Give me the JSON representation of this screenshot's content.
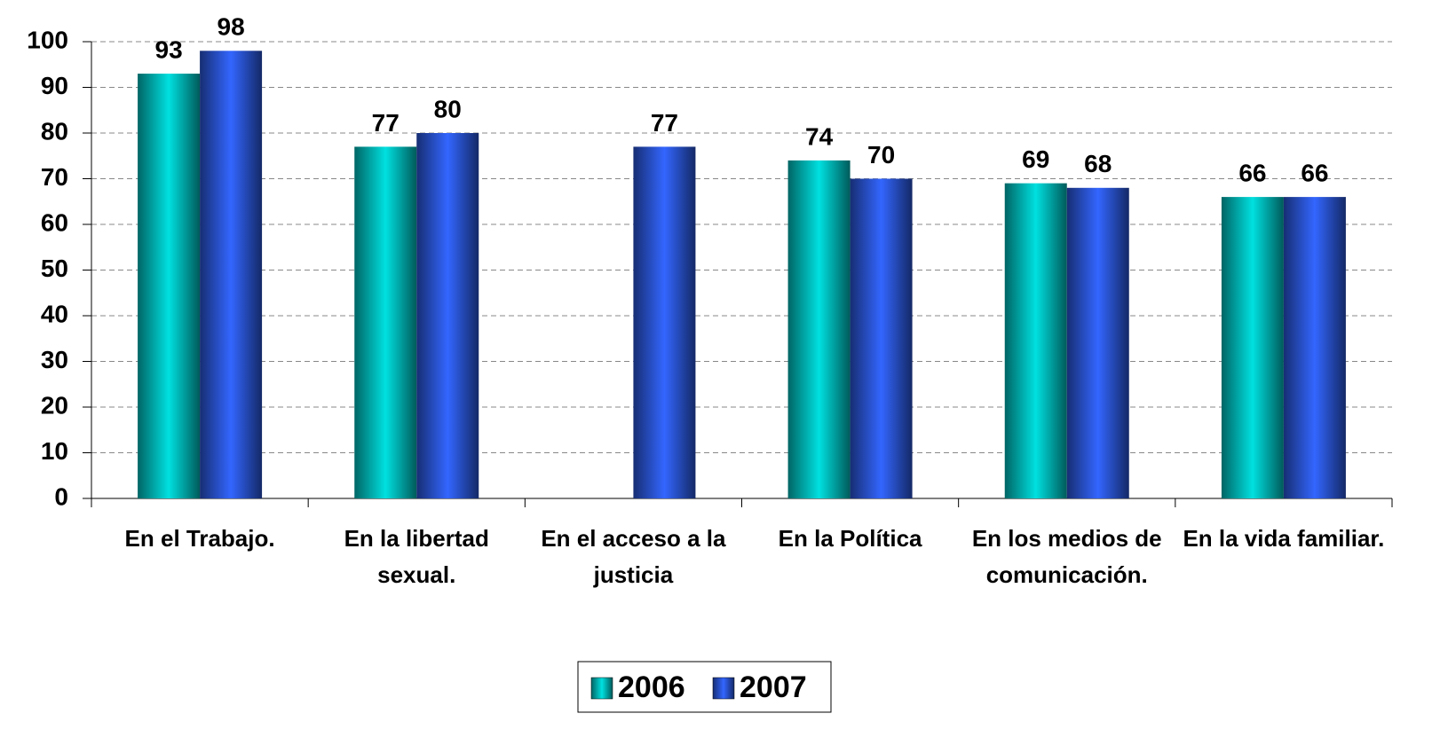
{
  "chart_data": {
    "type": "bar",
    "categories": [
      "En el Trabajo.",
      "En la libertad sexual.",
      "En el acceso a la justicia",
      "En la Política",
      "En los medios de comunicación.",
      "En la vida familiar."
    ],
    "series": [
      {
        "name": "2006",
        "color": "#00e0e0",
        "values": [
          93,
          77,
          null,
          74,
          69,
          66
        ]
      },
      {
        "name": "2007",
        "color": "#3366ff",
        "values": [
          98,
          80,
          77,
          70,
          68,
          66
        ]
      }
    ],
    "ylim": [
      0,
      100
    ],
    "yticks": [
      0,
      10,
      20,
      30,
      40,
      50,
      60,
      70,
      80,
      90,
      100
    ],
    "grid": true,
    "legend": "bottom"
  }
}
